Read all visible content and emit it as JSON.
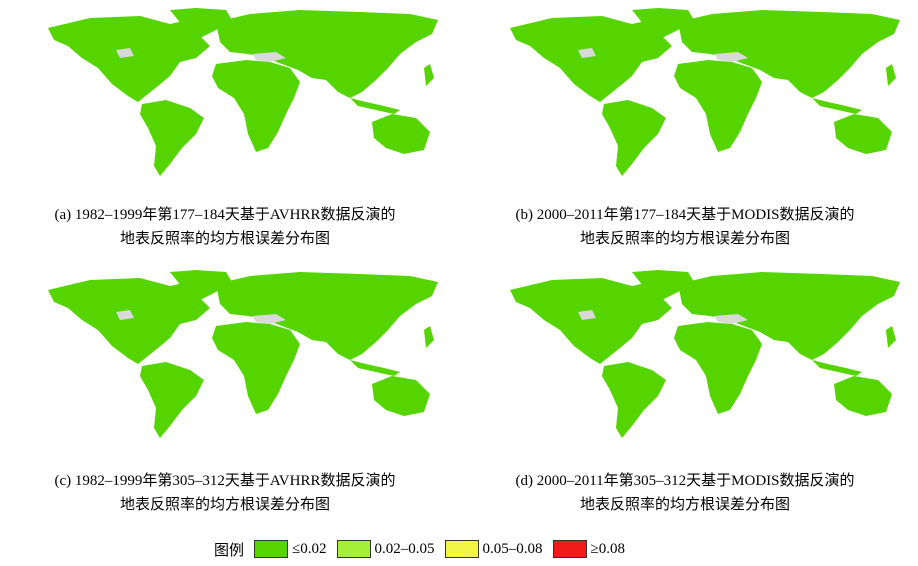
{
  "panels": [
    {
      "caption": [
        "(a) 1982–1999年第177–184天基于AVHRR数据反演的",
        "地表反照率的均方根误差分布图"
      ]
    },
    {
      "caption": [
        "(b) 2000–2011年第177–184天基于MODIS数据反演的",
        "地表反照率的均方根误差分布图"
      ]
    },
    {
      "caption": [
        "(c) 1982–1999年第305–312天基于AVHRR数据反演的",
        "地表反照率的均方根误差分布图"
      ]
    },
    {
      "caption": [
        "(d) 2000–2011年第305–312天基于MODIS数据反演的",
        "地表反照率的均方根误差分布图"
      ]
    }
  ],
  "legend": {
    "title": "图例",
    "items": [
      {
        "label": "≤0.02",
        "color": "#55d400"
      },
      {
        "label": "0.02–0.05",
        "color": "#a6f03a"
      },
      {
        "label": "0.05–0.08",
        "color": "#f2f545"
      },
      {
        "label": "≥0.08",
        "color": "#f01a1a"
      }
    ]
  }
}
